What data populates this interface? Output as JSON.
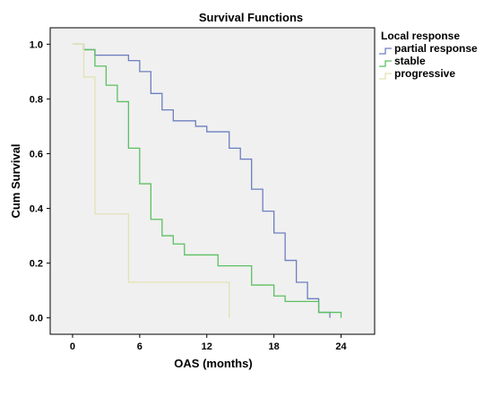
{
  "chart_data": {
    "type": "line",
    "title": "Survival Functions",
    "xlabel": "OAS (months)",
    "ylabel": "Cum Survival",
    "xlim": [
      -2,
      27
    ],
    "ylim": [
      -0.06,
      1.06
    ],
    "xticks": [
      0,
      6,
      12,
      18,
      24
    ],
    "yticks": [
      0.0,
      0.2,
      0.4,
      0.6,
      0.8,
      1.0
    ],
    "xtick_labels": [
      "0",
      "6",
      "12",
      "18",
      "24"
    ],
    "ytick_labels": [
      "0.0",
      "0.2",
      "0.4",
      "0.6",
      "0.8",
      "1.0"
    ],
    "grid": false,
    "legend": {
      "title": "Local response",
      "placement": "top-right-outside"
    },
    "series": [
      {
        "name": "partial response",
        "color": "#6c7fbf",
        "x": [
          1,
          2,
          5,
          6,
          7,
          8,
          9,
          11,
          12,
          14,
          15,
          16,
          17,
          18,
          19,
          20,
          21,
          22,
          23
        ],
        "y": [
          0.98,
          0.96,
          0.94,
          0.9,
          0.82,
          0.76,
          0.72,
          0.7,
          0.68,
          0.62,
          0.58,
          0.47,
          0.39,
          0.31,
          0.21,
          0.13,
          0.07,
          0.02,
          0.0
        ]
      },
      {
        "name": "stable",
        "color": "#5cc060",
        "x": [
          1,
          2,
          3,
          4,
          5,
          6,
          7,
          8,
          9,
          10,
          13,
          16,
          18,
          19,
          22,
          24
        ],
        "y": [
          0.98,
          0.92,
          0.85,
          0.79,
          0.62,
          0.49,
          0.36,
          0.3,
          0.27,
          0.23,
          0.19,
          0.12,
          0.08,
          0.06,
          0.02,
          0.0
        ]
      },
      {
        "name": "progressive",
        "color": "#e3e2b4",
        "x": [
          1,
          2,
          5,
          14
        ],
        "y": [
          0.88,
          0.38,
          0.13,
          0.0
        ]
      }
    ]
  }
}
